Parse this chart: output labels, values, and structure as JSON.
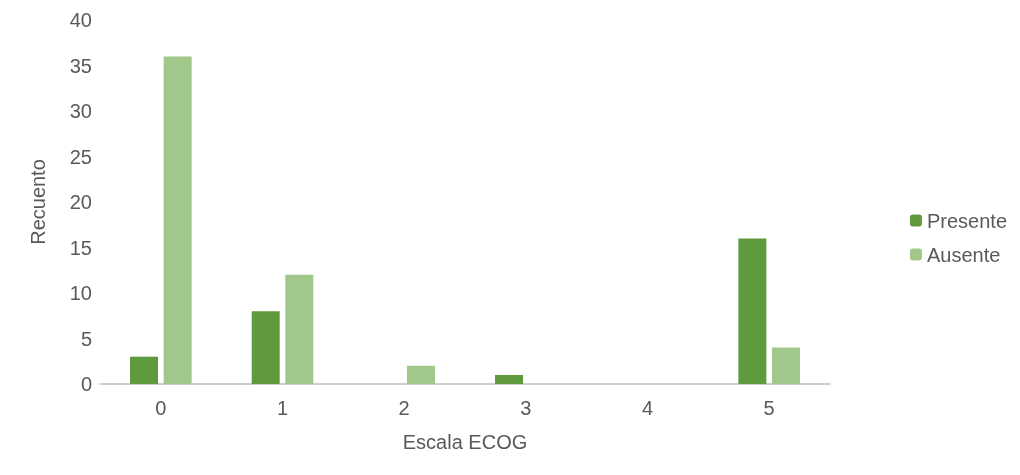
{
  "chart_data": {
    "type": "bar",
    "xlabel": "Escala ECOG",
    "ylabel": "Recuento",
    "categories": [
      "0",
      "1",
      "2",
      "3",
      "4",
      "5"
    ],
    "series": [
      {
        "name": "Presente",
        "color": "#5f9a3c",
        "values": [
          3,
          8,
          0,
          1,
          0,
          16
        ]
      },
      {
        "name": "Ausente",
        "color": "#a1c78b",
        "values": [
          36,
          12,
          2,
          0,
          0,
          4
        ]
      }
    ],
    "ylim": [
      0,
      40
    ],
    "yticks": [
      0,
      5,
      10,
      15,
      20,
      25,
      30,
      35,
      40
    ],
    "grid": false,
    "legend": "right"
  }
}
